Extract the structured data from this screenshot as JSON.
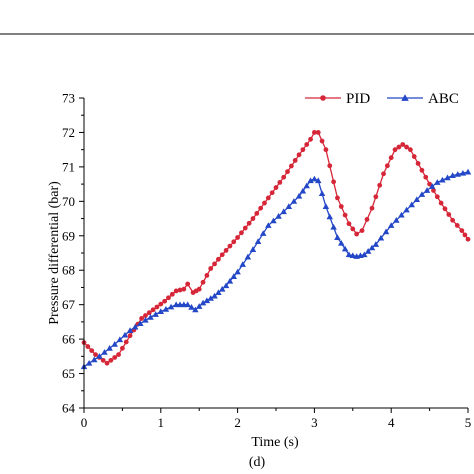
{
  "chart_data": {
    "type": "line",
    "xlabel": "Time (s)",
    "ylabel": "Pressure differential (bar)",
    "caption": "(d)",
    "xlim": [
      0,
      5
    ],
    "ylim": [
      64,
      73
    ],
    "xticks": [
      0,
      1,
      2,
      3,
      4,
      5
    ],
    "yticks": [
      64,
      65,
      66,
      67,
      68,
      69,
      70,
      71,
      72,
      73
    ],
    "xtick_labels": [
      "0",
      "1",
      "2",
      "3",
      "4",
      "5"
    ],
    "ytick_labels": [
      "64",
      "65",
      "66",
      "67",
      "68",
      "69",
      "70",
      "71",
      "72",
      "73"
    ],
    "grid": false,
    "legend_position": "top-right",
    "series": [
      {
        "name": "PID",
        "color": "#d62739",
        "marker": "circle",
        "x": [
          0,
          0.15,
          0.3,
          0.45,
          0.6,
          0.75,
          0.9,
          1.05,
          1.2,
          1.3,
          1.35,
          1.42,
          1.5,
          1.65,
          1.8,
          2.0,
          2.2,
          2.4,
          2.6,
          2.8,
          2.95,
          3.0,
          3.05,
          3.15,
          3.3,
          3.45,
          3.55,
          3.62,
          3.75,
          3.9,
          4.05,
          4.15,
          4.25,
          4.35,
          4.5,
          4.65,
          4.8,
          4.92,
          5.0
        ],
        "y": [
          65.9,
          65.55,
          65.3,
          65.55,
          66.1,
          66.6,
          66.85,
          67.1,
          67.4,
          67.45,
          67.6,
          67.35,
          67.45,
          68.05,
          68.45,
          68.95,
          69.5,
          70.1,
          70.7,
          71.35,
          71.8,
          72.0,
          72.0,
          71.5,
          70.1,
          69.35,
          69.05,
          69.15,
          69.8,
          70.8,
          71.5,
          71.65,
          71.5,
          71.1,
          70.5,
          69.95,
          69.45,
          69.15,
          68.9
        ]
      },
      {
        "name": "ABC",
        "color": "#2347c6",
        "marker": "triangle",
        "x": [
          0,
          0.2,
          0.4,
          0.6,
          0.8,
          1.0,
          1.2,
          1.35,
          1.45,
          1.55,
          1.7,
          1.85,
          2.0,
          2.2,
          2.4,
          2.6,
          2.8,
          2.95,
          3.0,
          3.05,
          3.15,
          3.3,
          3.45,
          3.55,
          3.65,
          3.8,
          4.0,
          4.2,
          4.4,
          4.6,
          4.8,
          5.0
        ],
        "y": [
          65.2,
          65.5,
          65.85,
          66.25,
          66.55,
          66.8,
          67.0,
          67.0,
          66.85,
          67.05,
          67.25,
          67.55,
          67.95,
          68.6,
          69.3,
          69.7,
          70.15,
          70.6,
          70.65,
          70.6,
          69.85,
          68.95,
          68.45,
          68.4,
          68.45,
          68.75,
          69.3,
          69.75,
          70.2,
          70.55,
          70.75,
          70.85
        ]
      }
    ]
  }
}
